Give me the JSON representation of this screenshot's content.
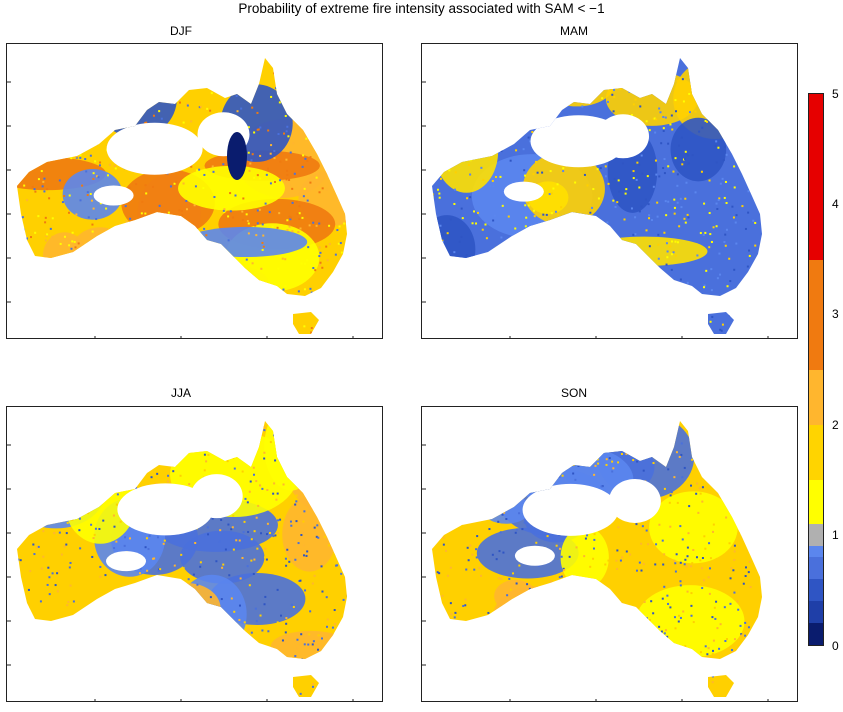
{
  "title": "Probability of extreme fire intensity associated with SAM < −1",
  "panels": [
    {
      "id": "djf",
      "label": "DJF",
      "dominant": "warm"
    },
    {
      "id": "mam",
      "label": "MAM",
      "dominant": "cool"
    },
    {
      "id": "jja",
      "label": "JJA",
      "dominant": "mixed"
    },
    {
      "id": "son",
      "label": "SON",
      "dominant": "mixed"
    }
  ],
  "colorbar": {
    "ticks": [
      "0",
      "1",
      "2",
      "3",
      "4",
      "5"
    ],
    "segments": [
      {
        "from": 0.0,
        "to": 0.2,
        "color": "#0a1c6e"
      },
      {
        "from": 0.2,
        "to": 0.4,
        "color": "#1f3fa8"
      },
      {
        "from": 0.4,
        "to": 0.6,
        "color": "#2f55c4"
      },
      {
        "from": 0.6,
        "to": 0.8,
        "color": "#4a70dc"
      },
      {
        "from": 0.8,
        "to": 0.9,
        "color": "#5b86ee"
      },
      {
        "from": 0.9,
        "to": 1.1,
        "color": "#b0b0b0"
      },
      {
        "from": 1.1,
        "to": 1.5,
        "color": "#ffff00"
      },
      {
        "from": 1.5,
        "to": 2.0,
        "color": "#ffd400"
      },
      {
        "from": 2.0,
        "to": 2.5,
        "color": "#ffb62e"
      },
      {
        "from": 2.5,
        "to": 3.5,
        "color": "#f07a10"
      },
      {
        "from": 3.5,
        "to": 5.0,
        "color": "#e60000"
      }
    ]
  }
}
